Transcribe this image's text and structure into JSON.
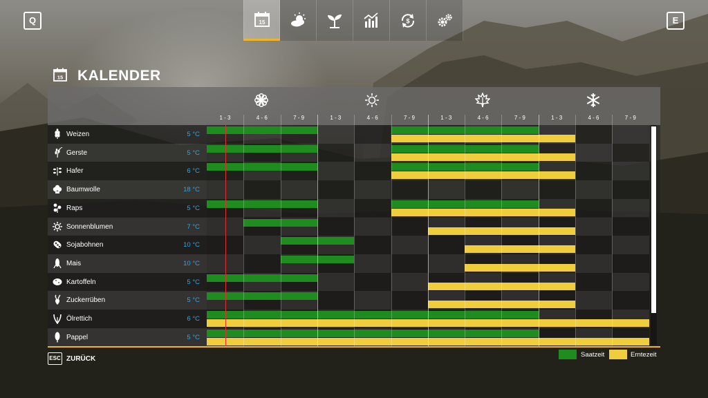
{
  "topbar": {
    "left_key": "Q",
    "right_key": "E",
    "tabs": [
      {
        "name": "calendar",
        "icon": "calendar-icon",
        "active": true,
        "day": "15"
      },
      {
        "name": "weather",
        "icon": "weather-icon",
        "active": false
      },
      {
        "name": "crops",
        "icon": "sprout-icon",
        "active": false
      },
      {
        "name": "prices",
        "icon": "chart-icon",
        "active": false
      },
      {
        "name": "finances",
        "icon": "cycle-icon",
        "active": false
      },
      {
        "name": "settings",
        "icon": "gears-icon",
        "active": false
      }
    ]
  },
  "header": {
    "title": "KALENDER",
    "icon_day": "15"
  },
  "seasons": [
    {
      "icon": "flower-icon"
    },
    {
      "icon": "sun-icon"
    },
    {
      "icon": "leaf-icon"
    },
    {
      "icon": "snowflake-icon"
    }
  ],
  "months": [
    "1 - 3",
    "4 - 6",
    "7 - 9",
    "1 - 3",
    "4 - 6",
    "7 - 9",
    "1 - 3",
    "4 - 6",
    "7 - 9",
    "1 - 3",
    "4 - 6",
    "7 - 9"
  ],
  "crops": [
    {
      "name": "Weizen",
      "temp": "5 °C",
      "icon": "wheat-icon",
      "sow": [
        [
          0,
          3
        ],
        [
          5,
          9
        ]
      ],
      "harvest": [
        [
          5,
          10
        ]
      ]
    },
    {
      "name": "Gerste",
      "temp": "5 °C",
      "icon": "barley-icon",
      "sow": [
        [
          0,
          3
        ],
        [
          5,
          9
        ]
      ],
      "harvest": [
        [
          5,
          10
        ]
      ]
    },
    {
      "name": "Hafer",
      "temp": "6 °C",
      "icon": "oat-icon",
      "sow": [
        [
          0,
          3
        ],
        [
          5,
          9
        ]
      ],
      "harvest": [
        [
          5,
          10
        ]
      ]
    },
    {
      "name": "Baumwolle",
      "temp": "18 °C",
      "icon": "cotton-icon",
      "sow": [],
      "harvest": []
    },
    {
      "name": "Raps",
      "temp": "5 °C",
      "icon": "canola-icon",
      "sow": [
        [
          0,
          3
        ],
        [
          5,
          9
        ]
      ],
      "harvest": [
        [
          5,
          10
        ]
      ]
    },
    {
      "name": "Sonnenblumen",
      "temp": "7 °C",
      "icon": "sunflower-icon",
      "sow": [
        [
          1,
          3
        ]
      ],
      "harvest": [
        [
          6,
          10
        ]
      ]
    },
    {
      "name": "Sojabohnen",
      "temp": "10 °C",
      "icon": "soybean-icon",
      "sow": [
        [
          2,
          4
        ]
      ],
      "harvest": [
        [
          7,
          10
        ]
      ]
    },
    {
      "name": "Mais",
      "temp": "10 °C",
      "icon": "corn-icon",
      "sow": [
        [
          2,
          4
        ]
      ],
      "harvest": [
        [
          7,
          10
        ]
      ]
    },
    {
      "name": "Kartoffeln",
      "temp": "5 °C",
      "icon": "potato-icon",
      "sow": [
        [
          0,
          3
        ]
      ],
      "harvest": [
        [
          6,
          10
        ]
      ]
    },
    {
      "name": "Zuckerrüben",
      "temp": "5 °C",
      "icon": "sugarbeet-icon",
      "sow": [
        [
          0,
          3
        ]
      ],
      "harvest": [
        [
          6,
          10
        ]
      ]
    },
    {
      "name": "Ölrettich",
      "temp": "6 °C",
      "icon": "oilradish-icon",
      "sow": [
        [
          0,
          9
        ]
      ],
      "harvest": [
        [
          0,
          12
        ]
      ]
    },
    {
      "name": "Pappel",
      "temp": "5 °C",
      "icon": "poplar-icon",
      "sow": [
        [
          0,
          9
        ]
      ],
      "harvest": [
        [
          0,
          12
        ]
      ]
    }
  ],
  "footer": {
    "esc_key": "ESC",
    "back_label": "ZURÜCK",
    "legend": [
      {
        "label": "Saatzeit",
        "color": "#1f8c1f"
      },
      {
        "label": "Erntezeit",
        "color": "#f0cd3c"
      }
    ]
  },
  "colors": {
    "accent": "#f0b429",
    "sow": "#1f8c1f",
    "harvest": "#f0cd3c",
    "temp": "#2ea6e6",
    "today_marker": "#e23030"
  }
}
